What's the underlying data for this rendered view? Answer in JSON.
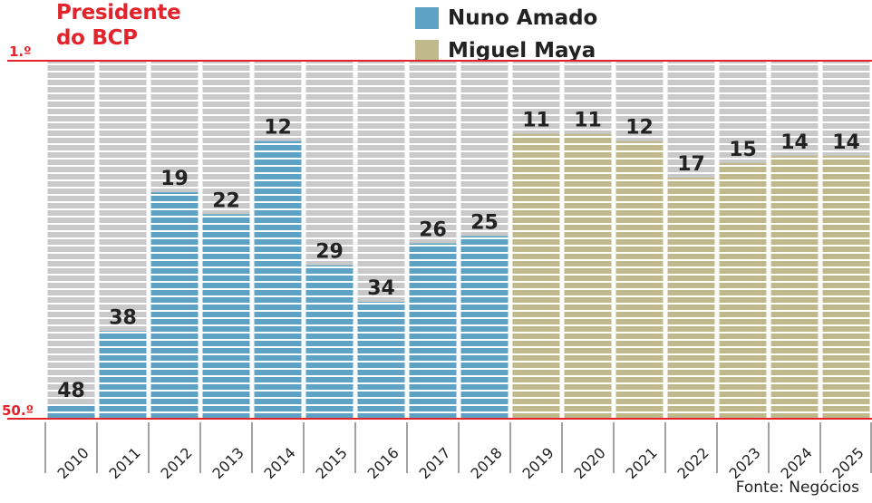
{
  "title": {
    "line1": "Presidente",
    "line2": "do BCP"
  },
  "legend": [
    {
      "label": "Nuno Amado",
      "color": "#5ea3c5"
    },
    {
      "label": "Miguel Maya",
      "color": "#bfb98b"
    }
  ],
  "source": "Fonte: Negócios",
  "chart_data": {
    "type": "bar",
    "categories": [
      "2010",
      "2011",
      "2012",
      "2013",
      "2014",
      "2015",
      "2016",
      "2017",
      "2018",
      "2019",
      "2020",
      "2021",
      "2022",
      "2023",
      "2024",
      "2025"
    ],
    "values": [
      48,
      38,
      19,
      22,
      12,
      29,
      34,
      26,
      25,
      11,
      11,
      12,
      17,
      15,
      14,
      14
    ],
    "series_by_category": [
      "Nuno Amado",
      "Nuno Amado",
      "Nuno Amado",
      "Nuno Amado",
      "Nuno Amado",
      "Nuno Amado",
      "Nuno Amado",
      "Nuno Amado",
      "Nuno Amado",
      "Miguel Maya",
      "Miguel Maya",
      "Miguel Maya",
      "Miguel Maya",
      "Miguel Maya",
      "Miguel Maya",
      "Miguel Maya"
    ],
    "y_axis": {
      "top_label": "1.º",
      "bottom_label": "50.º",
      "range": [
        1,
        50
      ],
      "inverted": true
    },
    "colors": {
      "Nuno Amado": "#5ea3c5",
      "Miguel Maya": "#bfb98b",
      "background_bar": "#c8c8c8",
      "axis_line": "#e3232b"
    }
  }
}
